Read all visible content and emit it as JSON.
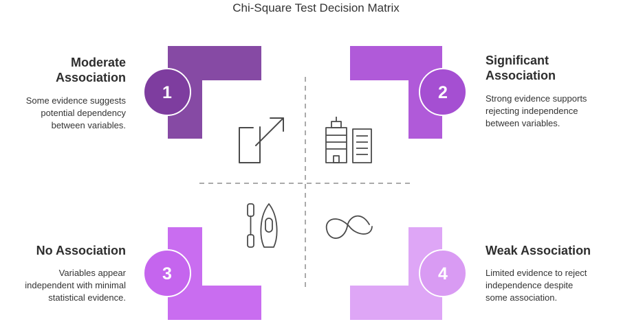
{
  "title": "Chi-Square Test Decision Matrix",
  "colors": {
    "q1": "#864aa4",
    "q2": "#b05ad9",
    "q3": "#c96df0",
    "q4": "#dea6f6",
    "circle1": "#7e3d9f",
    "circle2": "#a54fd2",
    "circle3": "#c565ee",
    "circle4": "#d99bf3",
    "icon_stroke": "#4a4a4a",
    "divider": "#aaaaaa"
  },
  "quadrants": [
    {
      "number": "1",
      "heading_line1": "Moderate",
      "heading_line2": "Association",
      "desc_line1": "Some evidence suggests",
      "desc_line2": "potential dependency",
      "desc_line3": "between variables.",
      "icon": "external-link-icon"
    },
    {
      "number": "2",
      "heading_line1": "Significant",
      "heading_line2": "Association",
      "desc_line1": "Strong evidence supports",
      "desc_line2": "rejecting independence",
      "desc_line3": "between variables.",
      "icon": "buildings-icon"
    },
    {
      "number": "3",
      "heading_line1": "No Association",
      "desc_line1": "Variables appear",
      "desc_line2": "independent with minimal",
      "desc_line3": "statistical evidence.",
      "icon": "canoe-paddle-icon"
    },
    {
      "number": "4",
      "heading_line1": "Weak Association",
      "desc_line1": "Limited evidence to reject",
      "desc_line2": "independence despite",
      "desc_line3": "some association.",
      "icon": "loop-icon"
    }
  ]
}
